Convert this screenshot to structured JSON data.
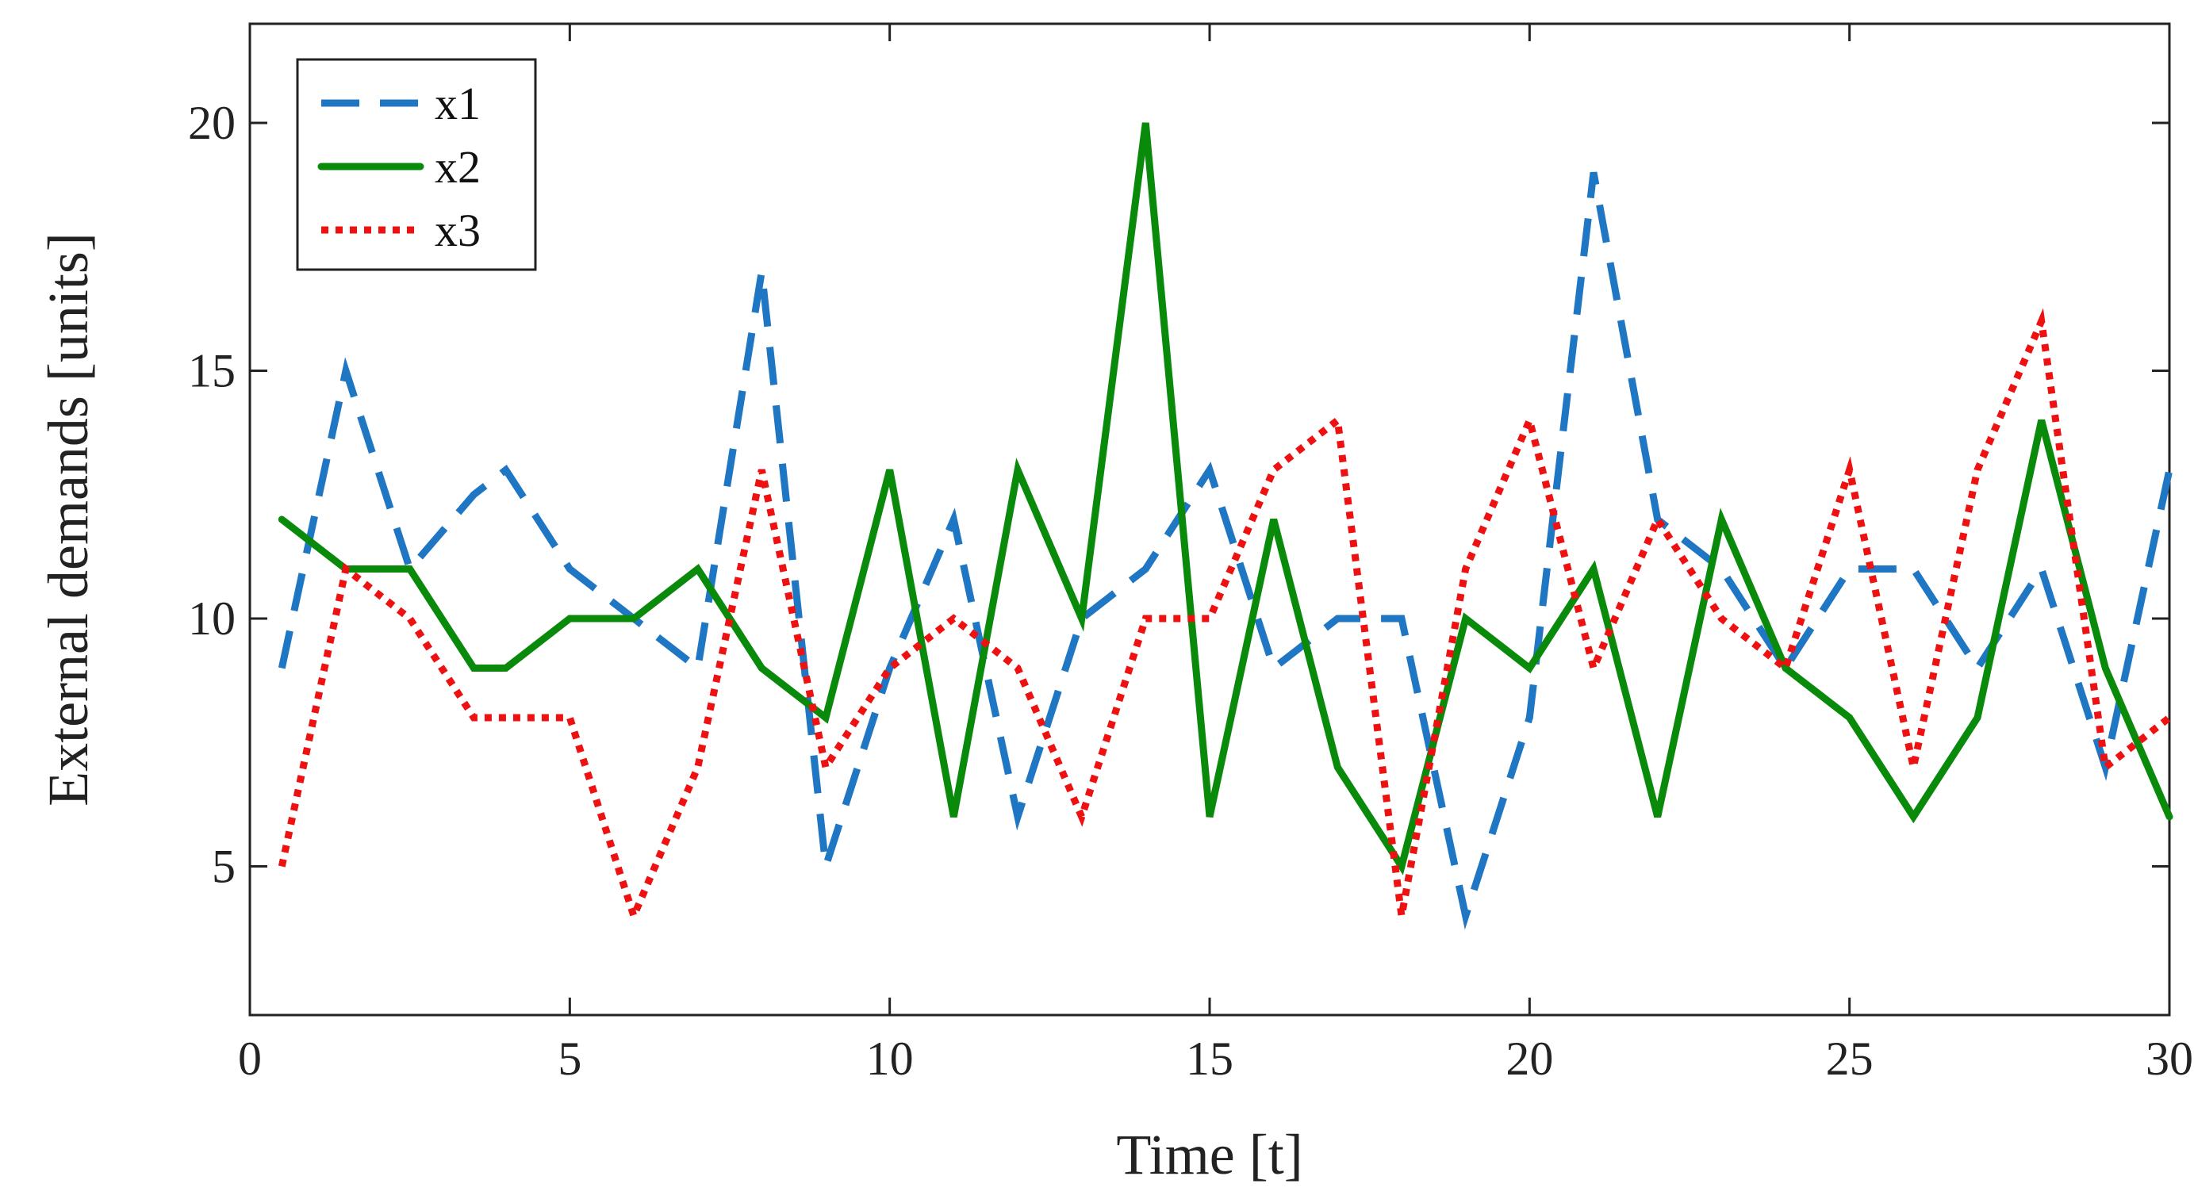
{
  "chart_data": {
    "type": "line",
    "title": "",
    "xlabel": "Time [t]",
    "ylabel": "External demands [units]",
    "xlim": [
      0,
      30
    ],
    "ylim": [
      2,
      22
    ],
    "xticks": [
      0,
      5,
      10,
      15,
      20,
      25,
      30
    ],
    "yticks": [
      5,
      10,
      15,
      20
    ],
    "xtick_labels": [
      "0",
      "5",
      "10",
      "15",
      "20",
      "25",
      "30"
    ],
    "ytick_labels": [
      "5",
      "10",
      "15",
      "20"
    ],
    "grid": false,
    "legend_position": "top-left",
    "series": [
      {
        "name": "x1",
        "style": "dashed",
        "color": "#1f77c4",
        "x": [
          0.5,
          1.5,
          2.5,
          3.5,
          4,
          5,
          6,
          7,
          8,
          9,
          10,
          11,
          12,
          13,
          14,
          15,
          16,
          17,
          18,
          19,
          20,
          21,
          22,
          23,
          24,
          25,
          26,
          27,
          28,
          29,
          30
        ],
        "y": [
          9,
          15,
          11,
          12.5,
          13,
          11,
          10,
          9,
          17,
          5,
          9,
          12,
          6,
          10,
          11,
          13,
          9,
          10,
          10,
          4,
          8,
          19,
          12,
          11,
          9,
          11,
          11,
          9,
          11,
          7,
          13
        ]
      },
      {
        "name": "x2",
        "style": "solid",
        "color": "#0a8a0a",
        "x": [
          0.5,
          1.5,
          2.5,
          3.5,
          4,
          5,
          6,
          7,
          8,
          9,
          10,
          11,
          12,
          13,
          14,
          15,
          16,
          17,
          18,
          19,
          20,
          21,
          22,
          23,
          24,
          25,
          26,
          27,
          28,
          29,
          30
        ],
        "y": [
          12,
          11,
          11,
          9,
          9,
          10,
          10,
          11,
          9,
          8,
          13,
          6,
          13,
          10,
          20,
          6,
          12,
          7,
          5,
          10,
          9,
          11,
          6,
          12,
          9,
          8,
          6,
          8,
          14,
          9,
          6
        ]
      },
      {
        "name": "x3",
        "style": "dotted",
        "color": "#ee1111",
        "x": [
          0.5,
          1.5,
          2.5,
          3.5,
          4,
          5,
          6,
          7,
          8,
          9,
          10,
          11,
          12,
          13,
          14,
          15,
          16,
          17,
          18,
          19,
          20,
          21,
          22,
          23,
          24,
          25,
          26,
          27,
          28,
          29,
          30
        ],
        "y": [
          5,
          11,
          10,
          8,
          8,
          8,
          4,
          7,
          13,
          7,
          9,
          10,
          9,
          6,
          10,
          10,
          13,
          14,
          4,
          11,
          14,
          9,
          12,
          10,
          9,
          13,
          7,
          13,
          16,
          7,
          8
        ]
      }
    ]
  }
}
